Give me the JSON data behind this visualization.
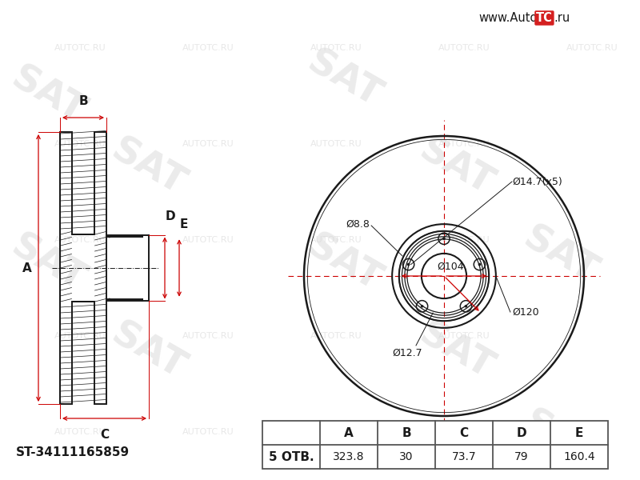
{
  "bg_color": "#ffffff",
  "line_color": "#1a1a1a",
  "red_color": "#cc0000",
  "watermark_color": "#d8d8d8",
  "part_number": "ST-34111165859",
  "website_prefix": "www.Auto",
  "website_tc": "TC",
  "website_suffix": ".ru",
  "table_headers": [
    "A",
    "B",
    "C",
    "D",
    "E"
  ],
  "table_label": "5 ОТВ.",
  "table_values": [
    "323.8",
    "30",
    "73.7",
    "79",
    "160.4"
  ],
  "ann_d147": "Ø14.7(x5)",
  "ann_d88": "Ø8.8",
  "ann_d104": "Ø104",
  "ann_d120": "Ø120",
  "ann_d127": "Ø12.7",
  "label_A": "A",
  "label_B": "B",
  "label_C": "C",
  "label_D": "D",
  "label_E": "E",
  "A_val": 323.8,
  "B_val": 30,
  "C_val": 73.7,
  "D_val": 79,
  "E_val": 160.4
}
